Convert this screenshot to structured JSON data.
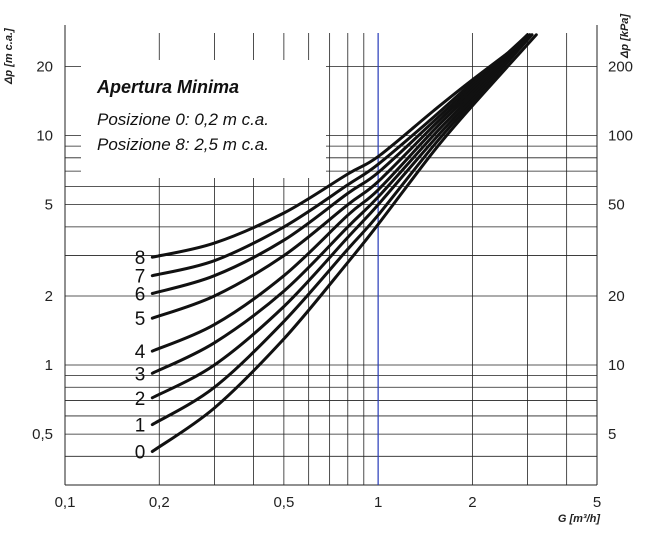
{
  "chart_data": {
    "type": "line",
    "title": "",
    "xlabel": "G [m³/h]",
    "ylabel_left": "Δp [m c.a.]",
    "ylabel_right": "Δp [kPa]",
    "x_scale": "log",
    "y_scale": "log",
    "xlim": [
      0.1,
      5
    ],
    "ylim": [
      0.3,
      28
    ],
    "grid": true,
    "x_ticks": [
      {
        "v": 0.1,
        "label": "0,1"
      },
      {
        "v": 0.2,
        "label": "0,2"
      },
      {
        "v": 0.5,
        "label": "0,5"
      },
      {
        "v": 1,
        "label": "1"
      },
      {
        "v": 2,
        "label": "2"
      },
      {
        "v": 5,
        "label": "5"
      }
    ],
    "y_ticks_left": [
      {
        "v": 0.5,
        "label": "0,5"
      },
      {
        "v": 1,
        "label": "1"
      },
      {
        "v": 2,
        "label": "2"
      },
      {
        "v": 5,
        "label": "5"
      },
      {
        "v": 10,
        "label": "10"
      },
      {
        "v": 20,
        "label": "20"
      }
    ],
    "y_ticks_right": [
      {
        "v": 0.5,
        "label": "5"
      },
      {
        "v": 1,
        "label": "10"
      },
      {
        "v": 2,
        "label": "20"
      },
      {
        "v": 5,
        "label": "50"
      },
      {
        "v": 10,
        "label": "100"
      },
      {
        "v": 20,
        "label": "200"
      }
    ],
    "highlight_x": 1,
    "legend": {
      "title": "Apertura Minima",
      "lines": [
        "Posizione 0: 0,2 m c.a.",
        "Posizione 8: 2,5 m c.a."
      ]
    },
    "series": [
      {
        "name": "0",
        "points": [
          [
            0.19,
            0.42
          ],
          [
            0.3,
            0.65
          ],
          [
            0.5,
            1.3
          ],
          [
            0.8,
            2.8
          ],
          [
            1,
            4.1
          ],
          [
            1.5,
            8.5
          ],
          [
            2,
            13.5
          ],
          [
            3.2,
            27.5
          ]
        ]
      },
      {
        "name": "1",
        "points": [
          [
            0.19,
            0.55
          ],
          [
            0.3,
            0.8
          ],
          [
            0.5,
            1.55
          ],
          [
            0.8,
            3.2
          ],
          [
            1,
            4.5
          ],
          [
            1.5,
            9
          ],
          [
            2,
            14
          ],
          [
            3.1,
            27.5
          ]
        ]
      },
      {
        "name": "2",
        "points": [
          [
            0.19,
            0.72
          ],
          [
            0.3,
            1.0
          ],
          [
            0.5,
            1.8
          ],
          [
            0.8,
            3.6
          ],
          [
            1,
            5.0
          ],
          [
            1.5,
            9.5
          ],
          [
            2,
            14.5
          ],
          [
            3.05,
            27.5
          ]
        ]
      },
      {
        "name": "3",
        "points": [
          [
            0.19,
            0.92
          ],
          [
            0.3,
            1.25
          ],
          [
            0.5,
            2.1
          ],
          [
            0.8,
            4.0
          ],
          [
            1,
            5.4
          ],
          [
            1.5,
            10
          ],
          [
            2,
            15
          ],
          [
            3.0,
            27.5
          ]
        ]
      },
      {
        "name": "4",
        "points": [
          [
            0.19,
            1.15
          ],
          [
            0.3,
            1.5
          ],
          [
            0.5,
            2.45
          ],
          [
            0.8,
            4.5
          ],
          [
            1,
            5.8
          ],
          [
            1.5,
            10.5
          ],
          [
            2,
            15.5
          ],
          [
            3.0,
            27.5
          ]
        ]
      },
      {
        "name": "5",
        "points": [
          [
            0.19,
            1.6
          ],
          [
            0.3,
            2.0
          ],
          [
            0.5,
            3.0
          ],
          [
            0.8,
            5.0
          ],
          [
            1,
            6.3
          ],
          [
            1.5,
            11
          ],
          [
            2,
            16
          ],
          [
            3.0,
            27.5
          ]
        ]
      },
      {
        "name": "6",
        "points": [
          [
            0.19,
            2.05
          ],
          [
            0.3,
            2.45
          ],
          [
            0.5,
            3.5
          ],
          [
            0.8,
            5.6
          ],
          [
            1,
            6.9
          ],
          [
            1.5,
            11.5
          ],
          [
            2,
            16.5
          ],
          [
            3.0,
            27.5
          ]
        ]
      },
      {
        "name": "7",
        "points": [
          [
            0.19,
            2.45
          ],
          [
            0.3,
            2.85
          ],
          [
            0.5,
            4.0
          ],
          [
            0.8,
            6.1
          ],
          [
            1,
            7.5
          ],
          [
            1.5,
            12
          ],
          [
            2,
            17
          ],
          [
            3.05,
            27.5
          ]
        ]
      },
      {
        "name": "8",
        "points": [
          [
            0.19,
            2.95
          ],
          [
            0.3,
            3.4
          ],
          [
            0.5,
            4.6
          ],
          [
            0.8,
            6.8
          ],
          [
            1,
            8.1
          ],
          [
            1.5,
            12.8
          ],
          [
            2,
            17.5
          ],
          [
            3.1,
            27.5
          ]
        ]
      }
    ],
    "colors": {
      "curve": "#111111",
      "grid": "#222222",
      "highlight": "#2b3fbf"
    }
  }
}
